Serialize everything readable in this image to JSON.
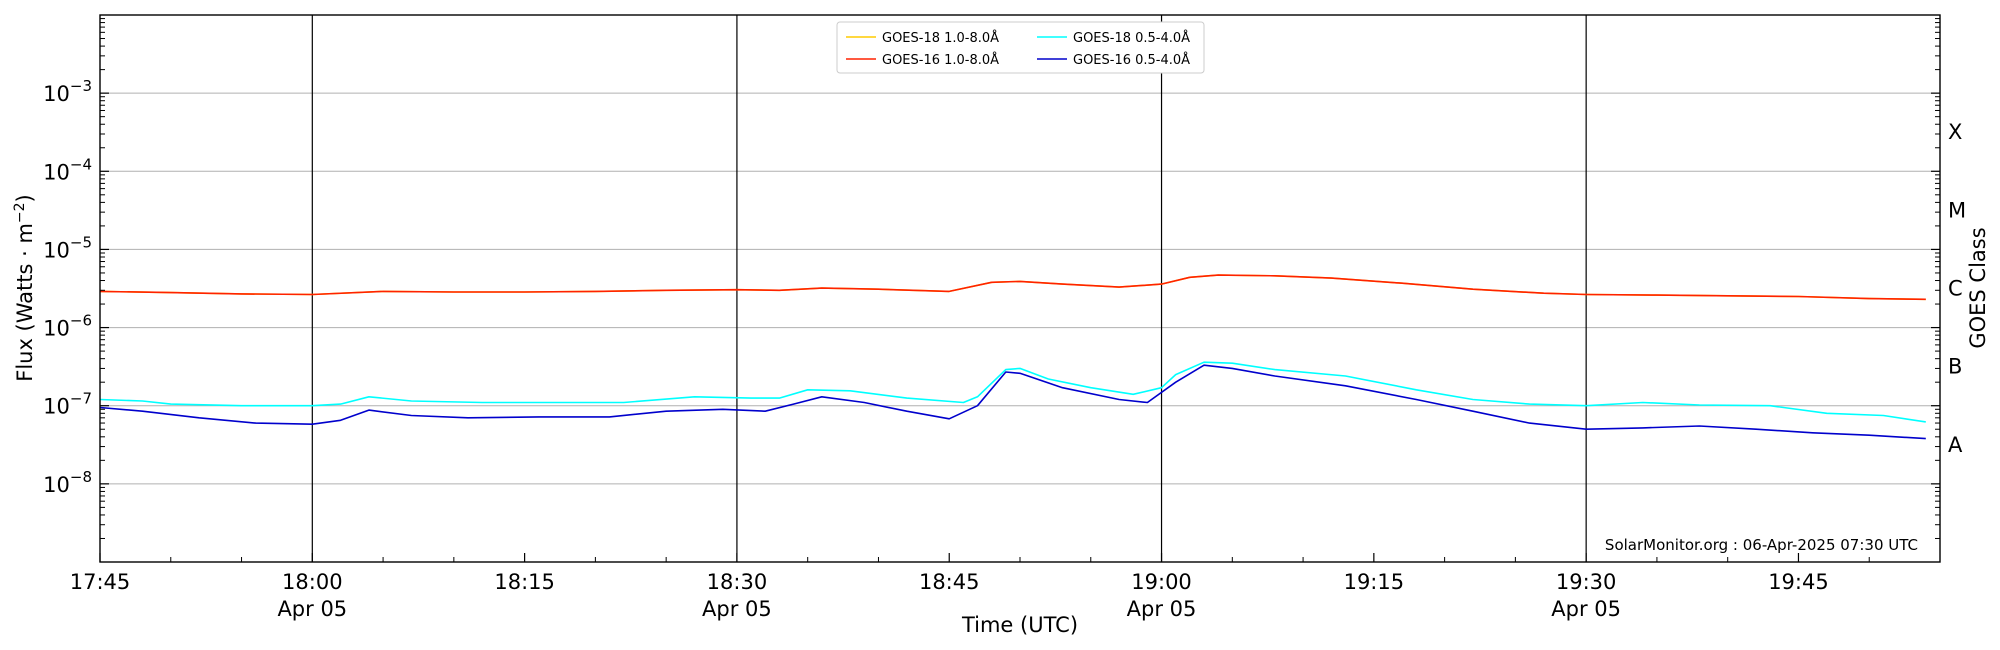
{
  "chart_data": {
    "type": "line",
    "xlabel": "Time (UTC)",
    "ylabel_main": "Flux (Watts · m",
    "ylabel_sup": "−2",
    "ylabel_close": ")",
    "y2label": "GOES Class",
    "yscale": "log",
    "ylim": [
      1e-09,
      0.01
    ],
    "x_range_minutes_utc": [
      "17:45",
      "19:55"
    ],
    "y_ticks": [
      {
        "value": 1e-08,
        "base": "10",
        "exp": "−8"
      },
      {
        "value": 1e-07,
        "base": "10",
        "exp": "−7"
      },
      {
        "value": 1e-06,
        "base": "10",
        "exp": "−6"
      },
      {
        "value": 1e-05,
        "base": "10",
        "exp": "−5"
      },
      {
        "value": 0.0001,
        "base": "10",
        "exp": "−4"
      },
      {
        "value": 0.001,
        "base": "10",
        "exp": "−3"
      }
    ],
    "x_ticks": [
      {
        "time": "17:45",
        "label": "17:45",
        "sub": ""
      },
      {
        "time": "18:00",
        "label": "18:00",
        "sub": "Apr 05"
      },
      {
        "time": "18:15",
        "label": "18:15",
        "sub": ""
      },
      {
        "time": "18:30",
        "label": "18:30",
        "sub": "Apr 05"
      },
      {
        "time": "18:45",
        "label": "18:45",
        "sub": ""
      },
      {
        "time": "19:00",
        "label": "19:00",
        "sub": "Apr 05"
      },
      {
        "time": "19:15",
        "label": "19:15",
        "sub": ""
      },
      {
        "time": "19:30",
        "label": "19:30",
        "sub": "Apr 05"
      },
      {
        "time": "19:45",
        "label": "19:45",
        "sub": ""
      }
    ],
    "vertical_lines": [
      "18:00",
      "18:30",
      "19:00",
      "19:30"
    ],
    "goes_classes": [
      {
        "label": "A",
        "value": 3.16e-08
      },
      {
        "label": "B",
        "value": 3.16e-07
      },
      {
        "label": "C",
        "value": 3.16e-06
      },
      {
        "label": "M",
        "value": 3.16e-05
      },
      {
        "label": "X",
        "value": 0.000316
      }
    ],
    "grid": "horizontal at decades",
    "legend_position": "top-center",
    "legend_entries": [
      {
        "name": "GOES-18 1.0-8.0Å",
        "color": "#ffcc00"
      },
      {
        "name": "GOES-16 1.0-8.0Å",
        "color": "#ff2200"
      },
      {
        "name": "GOES-18 0.5-4.0Å",
        "color": "#00ffff"
      },
      {
        "name": "GOES-16 0.5-4.0Å",
        "color": "#0000cc"
      }
    ],
    "series": [
      {
        "name": "GOES-18 1.0-8.0Å",
        "color": "#ffcc00",
        "points": [
          [
            "17:45",
            2.9e-06
          ],
          [
            "17:50",
            2.8e-06
          ],
          [
            "17:55",
            2.7e-06
          ],
          [
            "18:00",
            2.65e-06
          ],
          [
            "18:05",
            2.9e-06
          ],
          [
            "18:10",
            2.85e-06
          ],
          [
            "18:15",
            2.85e-06
          ],
          [
            "18:20",
            2.9e-06
          ],
          [
            "18:25",
            3e-06
          ],
          [
            "18:30",
            3.05e-06
          ],
          [
            "18:33",
            3e-06
          ],
          [
            "18:36",
            3.2e-06
          ],
          [
            "18:40",
            3.1e-06
          ],
          [
            "18:45",
            2.9e-06
          ],
          [
            "18:48",
            3.8e-06
          ],
          [
            "18:50",
            3.9e-06
          ],
          [
            "18:53",
            3.6e-06
          ],
          [
            "18:57",
            3.3e-06
          ],
          [
            "19:00",
            3.6e-06
          ],
          [
            "19:02",
            4.4e-06
          ],
          [
            "19:04",
            4.7e-06
          ],
          [
            "19:08",
            4.6e-06
          ],
          [
            "19:12",
            4.3e-06
          ],
          [
            "19:17",
            3.7e-06
          ],
          [
            "19:22",
            3.1e-06
          ],
          [
            "19:27",
            2.75e-06
          ],
          [
            "19:30",
            2.65e-06
          ],
          [
            "19:35",
            2.6e-06
          ],
          [
            "19:40",
            2.55e-06
          ],
          [
            "19:45",
            2.5e-06
          ],
          [
            "19:50",
            2.35e-06
          ],
          [
            "19:54",
            2.3e-06
          ]
        ]
      },
      {
        "name": "GOES-16 1.0-8.0Å",
        "color": "#ff2200",
        "points": [
          [
            "17:45",
            2.9e-06
          ],
          [
            "17:50",
            2.8e-06
          ],
          [
            "17:55",
            2.7e-06
          ],
          [
            "18:00",
            2.65e-06
          ],
          [
            "18:05",
            2.9e-06
          ],
          [
            "18:10",
            2.85e-06
          ],
          [
            "18:15",
            2.85e-06
          ],
          [
            "18:20",
            2.9e-06
          ],
          [
            "18:25",
            3e-06
          ],
          [
            "18:30",
            3.05e-06
          ],
          [
            "18:33",
            3e-06
          ],
          [
            "18:36",
            3.2e-06
          ],
          [
            "18:40",
            3.1e-06
          ],
          [
            "18:45",
            2.9e-06
          ],
          [
            "18:48",
            3.8e-06
          ],
          [
            "18:50",
            3.9e-06
          ],
          [
            "18:53",
            3.6e-06
          ],
          [
            "18:57",
            3.3e-06
          ],
          [
            "19:00",
            3.6e-06
          ],
          [
            "19:02",
            4.4e-06
          ],
          [
            "19:04",
            4.7e-06
          ],
          [
            "19:08",
            4.6e-06
          ],
          [
            "19:12",
            4.3e-06
          ],
          [
            "19:17",
            3.7e-06
          ],
          [
            "19:22",
            3.1e-06
          ],
          [
            "19:27",
            2.75e-06
          ],
          [
            "19:30",
            2.65e-06
          ],
          [
            "19:35",
            2.6e-06
          ],
          [
            "19:40",
            2.55e-06
          ],
          [
            "19:45",
            2.5e-06
          ],
          [
            "19:50",
            2.35e-06
          ],
          [
            "19:54",
            2.3e-06
          ]
        ]
      },
      {
        "name": "GOES-18 0.5-4.0Å",
        "color": "#00ffff",
        "points": [
          [
            "17:45",
            1.2e-07
          ],
          [
            "17:48",
            1.15e-07
          ],
          [
            "17:50",
            1.05e-07
          ],
          [
            "17:55",
            1e-07
          ],
          [
            "18:00",
            1e-07
          ],
          [
            "18:02",
            1.05e-07
          ],
          [
            "18:04",
            1.3e-07
          ],
          [
            "18:07",
            1.15e-07
          ],
          [
            "18:12",
            1.1e-07
          ],
          [
            "18:17",
            1.1e-07
          ],
          [
            "18:22",
            1.1e-07
          ],
          [
            "18:27",
            1.3e-07
          ],
          [
            "18:31",
            1.25e-07
          ],
          [
            "18:33",
            1.25e-07
          ],
          [
            "18:35",
            1.6e-07
          ],
          [
            "18:38",
            1.55e-07
          ],
          [
            "18:42",
            1.25e-07
          ],
          [
            "18:46",
            1.1e-07
          ],
          [
            "18:47",
            1.3e-07
          ],
          [
            "18:49",
            2.9e-07
          ],
          [
            "18:50",
            3e-07
          ],
          [
            "18:52",
            2.2e-07
          ],
          [
            "18:55",
            1.7e-07
          ],
          [
            "18:58",
            1.4e-07
          ],
          [
            "19:00",
            1.7e-07
          ],
          [
            "19:01",
            2.5e-07
          ],
          [
            "19:03",
            3.6e-07
          ],
          [
            "19:05",
            3.5e-07
          ],
          [
            "19:08",
            2.9e-07
          ],
          [
            "19:13",
            2.4e-07
          ],
          [
            "19:18",
            1.6e-07
          ],
          [
            "19:22",
            1.2e-07
          ],
          [
            "19:26",
            1.05e-07
          ],
          [
            "19:30",
            1e-07
          ],
          [
            "19:34",
            1.1e-07
          ],
          [
            "19:38",
            1.02e-07
          ],
          [
            "19:43",
            1e-07
          ],
          [
            "19:47",
            8e-08
          ],
          [
            "19:51",
            7.5e-08
          ],
          [
            "19:54",
            6.2e-08
          ]
        ]
      },
      {
        "name": "GOES-16 0.5-4.0Å",
        "color": "#0000cc",
        "points": [
          [
            "17:45",
            9.5e-08
          ],
          [
            "17:48",
            8.5e-08
          ],
          [
            "17:52",
            7e-08
          ],
          [
            "17:56",
            6e-08
          ],
          [
            "18:00",
            5.8e-08
          ],
          [
            "18:02",
            6.5e-08
          ],
          [
            "18:04",
            8.8e-08
          ],
          [
            "18:07",
            7.5e-08
          ],
          [
            "18:11",
            7e-08
          ],
          [
            "18:16",
            7.2e-08
          ],
          [
            "18:21",
            7.2e-08
          ],
          [
            "18:25",
            8.5e-08
          ],
          [
            "18:29",
            9e-08
          ],
          [
            "18:32",
            8.5e-08
          ],
          [
            "18:34",
            1.05e-07
          ],
          [
            "18:36",
            1.3e-07
          ],
          [
            "18:39",
            1.1e-07
          ],
          [
            "18:42",
            8.5e-08
          ],
          [
            "18:45",
            6.8e-08
          ],
          [
            "18:47",
            1e-07
          ],
          [
            "18:49",
            2.7e-07
          ],
          [
            "18:50",
            2.6e-07
          ],
          [
            "18:53",
            1.7e-07
          ],
          [
            "18:57",
            1.2e-07
          ],
          [
            "18:59",
            1.1e-07
          ],
          [
            "19:01",
            2e-07
          ],
          [
            "19:03",
            3.3e-07
          ],
          [
            "19:05",
            3e-07
          ],
          [
            "19:08",
            2.4e-07
          ],
          [
            "19:13",
            1.8e-07
          ],
          [
            "19:18",
            1.2e-07
          ],
          [
            "19:22",
            8.5e-08
          ],
          [
            "19:26",
            6e-08
          ],
          [
            "19:30",
            5e-08
          ],
          [
            "19:34",
            5.2e-08
          ],
          [
            "19:38",
            5.5e-08
          ],
          [
            "19:42",
            5e-08
          ],
          [
            "19:46",
            4.5e-08
          ],
          [
            "19:50",
            4.2e-08
          ],
          [
            "19:54",
            3.8e-08
          ]
        ]
      }
    ]
  },
  "credit": "SolarMonitor.org : 06-Apr-2025 07:30 UTC"
}
